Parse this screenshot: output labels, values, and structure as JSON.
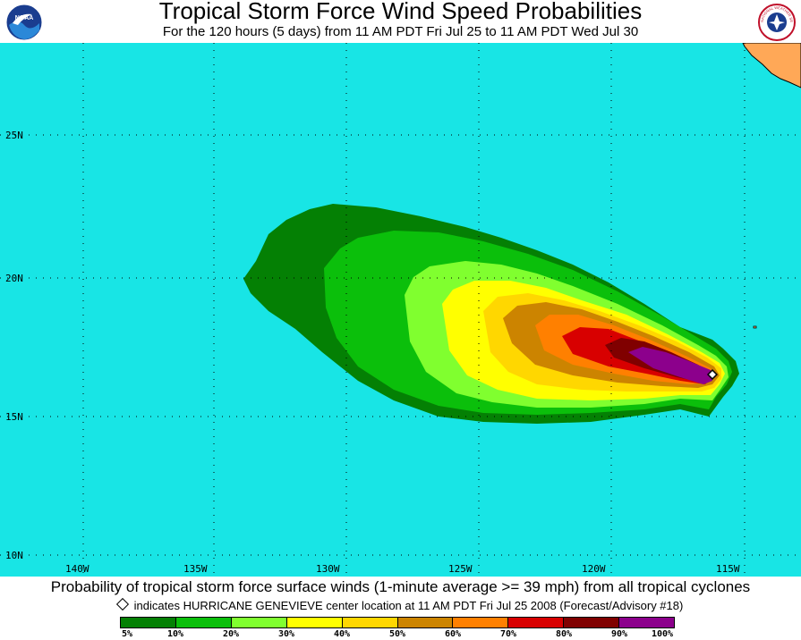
{
  "header": {
    "title": "Tropical Storm Force Wind Speed Probabilities",
    "subtitle": "For the 120 hours (5 days) from 11 AM PDT Fri Jul 25 to 11 AM PDT Wed Jul 30",
    "left_logo_text": "NOAA",
    "right_logo_text": "NATIONAL WEATHER SERVICE"
  },
  "map": {
    "ocean_color": "#18e5e5",
    "land_color": "#ffa857",
    "lon_labels": [
      "140W",
      "135W",
      "130W",
      "125W",
      "120W",
      "115W"
    ],
    "lat_labels": [
      "25N",
      "20N",
      "15N",
      "10N"
    ],
    "storm_marker": {
      "name": "HURRICANE GENEVIEVE",
      "lon": "115.6W",
      "lat": "16.6N"
    }
  },
  "footer": {
    "caption": "Probability of tropical storm force surface winds (1-minute average >= 39 mph) from all tropical cyclones",
    "note": "indicates HURRICANE GENEVIEVE center location at 11 AM PDT Fri Jul 25 2008 (Forecast/Advisory #18)"
  },
  "legend": {
    "colors": [
      "#048004",
      "#0bbf0b",
      "#80ff2f",
      "#ffff00",
      "#ffd700",
      "#cc8400",
      "#ff8000",
      "#d80000",
      "#800000",
      "#8c008c"
    ],
    "labels": [
      "5%",
      "10%",
      "20%",
      "30%",
      "40%",
      "50%",
      "60%",
      "70%",
      "80%",
      "90%",
      "100%"
    ]
  }
}
